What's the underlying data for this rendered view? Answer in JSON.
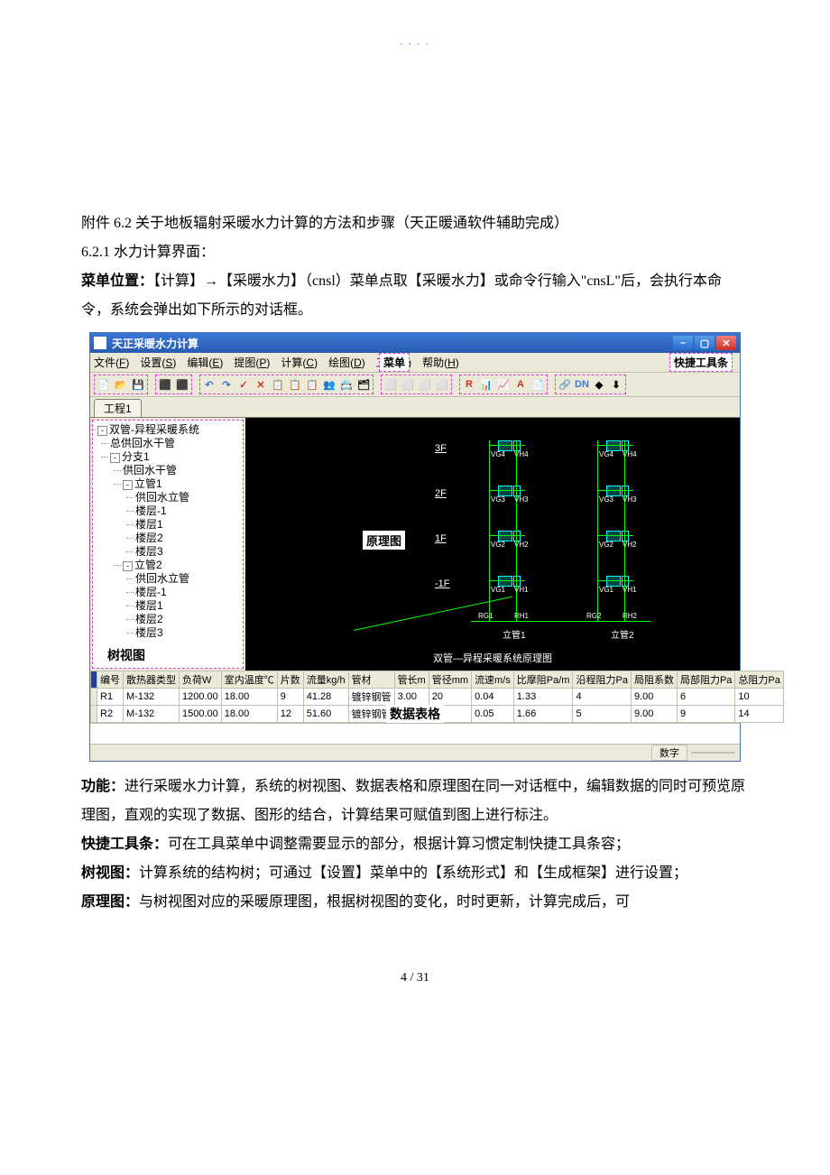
{
  "header_dots": ". . . .",
  "doc": {
    "p1": "附件 6.2 关于地板辐射采暖水力计算的方法和步骤（天正暖通软件辅助完成）",
    "p2": "6.2.1 水力计算界面：",
    "p3_prefix": "菜单位置：",
    "p3_rest": "【计算】→【采暖水力】（cnsl）菜单点取【采暖水力】或命令行输入\"cnsL\"后，会执行本命令，系统会弹出如下所示的对话框。",
    "p4_prefix": "功能：",
    "p4_rest": "进行采暖水力计算，系统的树视图、数据表格和原理图在同一对话框中，编辑数据的同时可预览原理图，直观的实现了数据、图形的结合，计算结果可赋值到图上进行标注。",
    "p5_prefix": "快捷工具条：",
    "p5_rest": "可在工具菜单中调整需要显示的部分，根据计算习惯定制快捷工具条容；",
    "p6_prefix": "树视图：",
    "p6_rest": "计算系统的结构树；可通过【设置】菜单中的【系统形式】和【生成框架】进行设置；",
    "p7_prefix": "原理图：",
    "p7_rest": "与树视图对应的采暖原理图，根据树视图的变化，时时更新，计算完成后，可",
    "page_num": "4 / 31"
  },
  "app": {
    "title": "天正采暖水力计算",
    "menus": [
      {
        "label": "文件",
        "key": "F"
      },
      {
        "label": "设置",
        "key": "S"
      },
      {
        "label": "编辑",
        "key": "E"
      },
      {
        "label": "提图",
        "key": "P"
      },
      {
        "label": "计算",
        "key": "C"
      },
      {
        "label": "绘图",
        "key": "D"
      },
      {
        "label": "工具",
        "key": "T"
      },
      {
        "label": "帮助",
        "key": "H"
      }
    ],
    "callout_menu": "菜单",
    "callout_toolbar": "快捷工具条",
    "callout_tree": "树视图",
    "callout_canvas": "原理图",
    "callout_table": "数据表格",
    "tab": "工程1",
    "toolbar_groups": [
      [
        "📄",
        "📂",
        "💾"
      ],
      [
        "⬛",
        "⬛"
      ],
      [
        "↶",
        "↷",
        "✓",
        "✕",
        "📋",
        "📋",
        "📋",
        "👥",
        "📇",
        "🗂"
      ],
      [
        "⬜",
        "⬜",
        "⬜",
        "⬜"
      ],
      [
        "R",
        "📊",
        "📈",
        "A",
        "📄"
      ],
      [
        "🔗",
        "DN",
        "◆",
        "⬇"
      ]
    ],
    "toolbar_colors": {
      "undo": "#3a7ad0",
      "redo": "#3a7ad0",
      "check": "#d03020",
      "x": "#d03020",
      "R": "#d03020",
      "dn": "#3a7ad0",
      "chart1": "#d07020",
      "chart2": "#2080a0",
      "A": "#d03020"
    },
    "tree": {
      "root": "双管-异程采暖系统",
      "items": [
        {
          "label": "总供回水干管",
          "level": 1
        },
        {
          "label": "分支1",
          "level": 1,
          "box": "-"
        },
        {
          "label": "供回水干管",
          "level": 2
        },
        {
          "label": "立管1",
          "level": 2,
          "box": "-"
        },
        {
          "label": "供回水立管",
          "level": 3
        },
        {
          "label": "楼层-1",
          "level": 3
        },
        {
          "label": "楼层1",
          "level": 3
        },
        {
          "label": "楼层2",
          "level": 3
        },
        {
          "label": "楼层3",
          "level": 3
        },
        {
          "label": "立管2",
          "level": 2,
          "box": "-"
        },
        {
          "label": "供回水立管",
          "level": 3
        },
        {
          "label": "楼层-1",
          "level": 3
        },
        {
          "label": "楼层1",
          "level": 3
        },
        {
          "label": "楼层2",
          "level": 3
        },
        {
          "label": "楼层3",
          "level": 3
        }
      ]
    },
    "canvas": {
      "floors": [
        "3F",
        "2F",
        "1F",
        "-1F"
      ],
      "vlabels": [
        "VG4",
        "VH4",
        "VG3",
        "VH3",
        "VG2",
        "VH2",
        "VG1",
        "VH1"
      ],
      "riser_labels": [
        "立管1",
        "立管2"
      ],
      "bottom_labels": [
        "RG1",
        "RH1",
        "RG2",
        "RH2"
      ],
      "caption": "双管—异程采暖系统原理图"
    },
    "table": {
      "columns": [
        "编号",
        "散热器类型",
        "负荷W",
        "室内温度℃",
        "片数",
        "流量kg/h",
        "管材",
        "管长m",
        "管径mm",
        "流速m/s",
        "比摩阻Pa/m",
        "沿程阻力Pa",
        "局阻系数",
        "局部阻力Pa",
        "总阻力Pa"
      ],
      "rows": [
        [
          "R1",
          "M-132",
          "1200.00",
          "18.00",
          "9",
          "41.28",
          "镀锌钢管",
          "3.00",
          "20",
          "0.04",
          "1.33",
          "4",
          "9.00",
          "6",
          "10"
        ],
        [
          "R2",
          "M-132",
          "1500.00",
          "18.00",
          "12",
          "51.60",
          "镀锌钢管",
          "3.00",
          "20",
          "0.05",
          "1.66",
          "5",
          "9.00",
          "9",
          "14"
        ]
      ]
    },
    "status": "数字"
  }
}
